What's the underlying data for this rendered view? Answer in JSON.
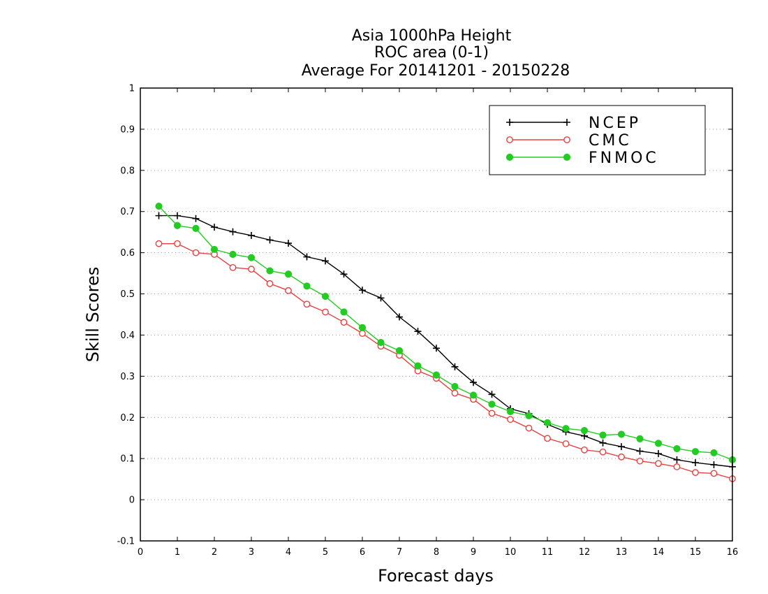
{
  "chart_data": {
    "type": "line",
    "title": [
      "Asia 1000hPa Height",
      "ROC area (0-1)",
      "Average For 20141201 - 20150228"
    ],
    "xlabel": "Forecast days",
    "ylabel": "Skill Scores",
    "xlim": [
      0,
      16
    ],
    "ylim": [
      -0.1,
      1
    ],
    "xticks": [
      0,
      1,
      2,
      3,
      4,
      5,
      6,
      7,
      8,
      9,
      10,
      11,
      12,
      13,
      14,
      15,
      16
    ],
    "yticks": [
      -0.1,
      0,
      0.1,
      0.2,
      0.3,
      0.4,
      0.5,
      0.6,
      0.7,
      0.8,
      0.9,
      1
    ],
    "ytick_labels": [
      "-0.1",
      "0",
      "0.1",
      "0.2",
      "0.3",
      "0.4",
      "0.5",
      "0.6",
      "0.7",
      "0.8",
      "0.9",
      "1"
    ],
    "grid": true,
    "legend_position": "top-right",
    "x": [
      0.5,
      1,
      1.5,
      2,
      2.5,
      3,
      3.5,
      4,
      4.5,
      5,
      5.5,
      6,
      6.5,
      7,
      7.5,
      8,
      8.5,
      9,
      9.5,
      10,
      10.5,
      11,
      11.5,
      12,
      12.5,
      13,
      13.5,
      14,
      14.5,
      15,
      15.5,
      16
    ],
    "series": [
      {
        "name": "NCEP",
        "color": "#000000",
        "marker": "plus",
        "values": [
          0.69,
          0.69,
          0.683,
          0.662,
          0.651,
          0.642,
          0.631,
          0.623,
          0.59,
          0.58,
          0.548,
          0.509,
          0.49,
          0.444,
          0.409,
          0.368,
          0.323,
          0.285,
          0.256,
          0.221,
          0.209,
          0.183,
          0.165,
          0.155,
          0.138,
          0.129,
          0.118,
          0.112,
          0.097,
          0.09,
          0.085,
          0.08
        ]
      },
      {
        "name": "CMC",
        "color": "#e84040",
        "marker": "open-circle",
        "values": [
          0.622,
          0.622,
          0.6,
          0.596,
          0.564,
          0.56,
          0.525,
          0.508,
          0.475,
          0.456,
          0.431,
          0.404,
          0.373,
          0.351,
          0.313,
          0.295,
          0.259,
          0.244,
          0.21,
          0.195,
          0.174,
          0.149,
          0.136,
          0.121,
          0.116,
          0.104,
          0.094,
          0.088,
          0.08,
          0.066,
          0.064,
          0.051
        ]
      },
      {
        "name": "FNMOC",
        "color": "#22cc22",
        "marker": "filled-circle",
        "values": [
          0.713,
          0.666,
          0.659,
          0.608,
          0.596,
          0.588,
          0.556,
          0.548,
          0.519,
          0.494,
          0.456,
          0.418,
          0.382,
          0.362,
          0.325,
          0.303,
          0.275,
          0.254,
          0.232,
          0.214,
          0.204,
          0.187,
          0.173,
          0.168,
          0.157,
          0.159,
          0.148,
          0.137,
          0.124,
          0.117,
          0.114,
          0.097
        ]
      }
    ]
  }
}
